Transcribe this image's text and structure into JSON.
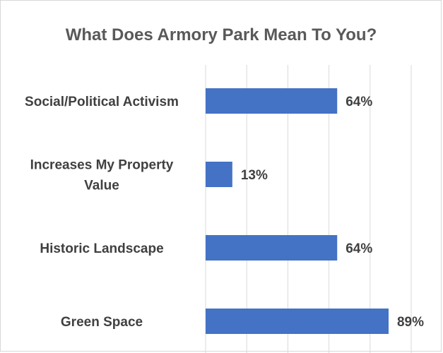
{
  "chart_data": {
    "type": "bar",
    "orientation": "horizontal",
    "title": "What Does Armory Park Mean To You?",
    "categories": [
      [
        "Social/Political Activism"
      ],
      [
        "Increases My Property",
        "Value"
      ],
      [
        "Historic Landscape"
      ],
      [
        "Green Space"
      ]
    ],
    "values": [
      64,
      13,
      64,
      89
    ],
    "data_labels": [
      "64%",
      "13%",
      "64%",
      "89%"
    ],
    "unit": "%",
    "xlim": [
      0,
      100
    ],
    "grid": true,
    "legend": "none",
    "bar_color": "#4472c4"
  }
}
